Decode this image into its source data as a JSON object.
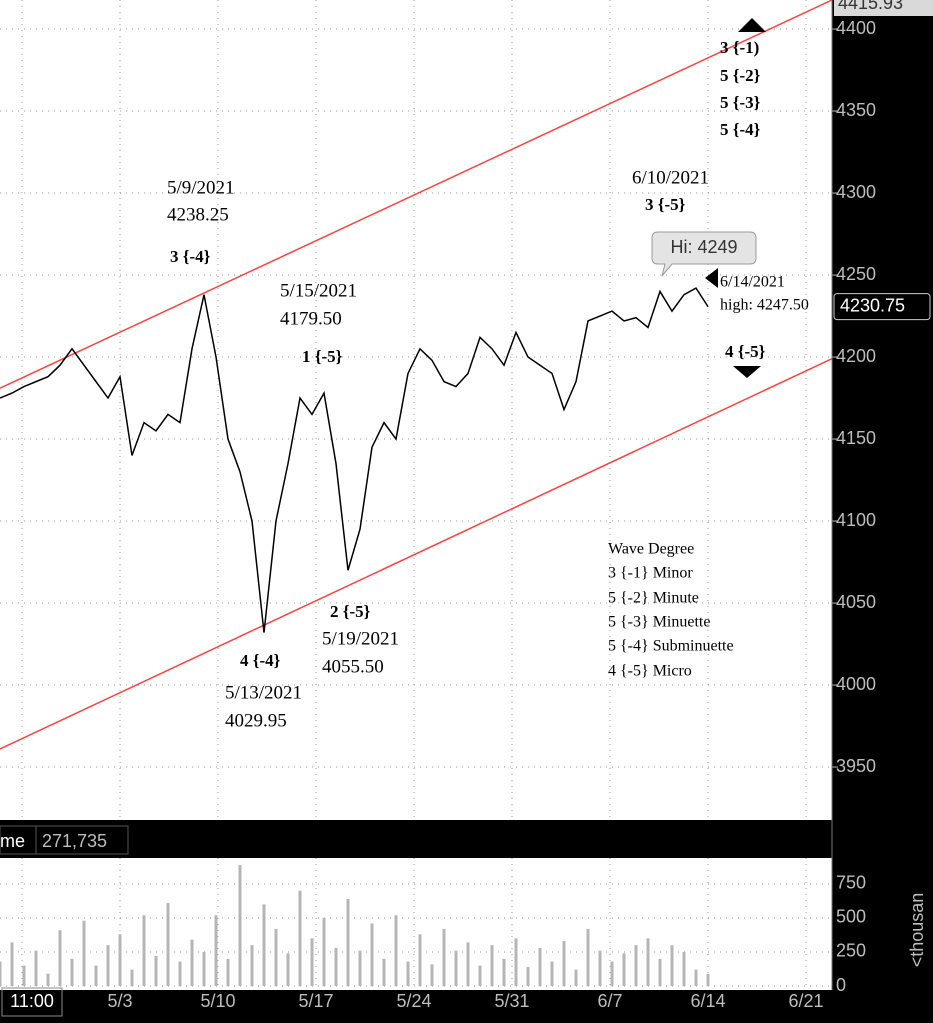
{
  "chart_data": {
    "type": "line",
    "price": {
      "color": "#000000",
      "values": [
        4175,
        4178,
        4182,
        4185,
        4188,
        4195,
        4205,
        4195,
        4185,
        4175,
        4188,
        4140,
        4160,
        4155,
        4165,
        4160,
        4205,
        4238,
        4200,
        4150,
        4130,
        4100,
        4032,
        4100,
        4135,
        4175,
        4165,
        4178,
        4135,
        4070,
        4095,
        4145,
        4160,
        4150,
        4190,
        4205,
        4198,
        4185,
        4182,
        4190,
        4212,
        4205,
        4195,
        4215,
        4200,
        4195,
        4190,
        4168,
        4185,
        4222,
        4225,
        4228,
        4222,
        4224,
        4218,
        4240,
        4228,
        4238,
        4242,
        4230.75
      ],
      "ylim": [
        3917.7,
        4417.7
      ],
      "yticks": [
        3950,
        4000,
        4050,
        4100,
        4150,
        4200,
        4250,
        4300,
        4350,
        4400
      ],
      "last_label": "4230.75",
      "top_label": "4415.93"
    },
    "channel": {
      "color": "#ff4040",
      "upper": [
        4181,
        4417.7
      ],
      "lower": [
        3961,
        4199
      ]
    },
    "volume": {
      "header": "me",
      "header_value": "271,735",
      "color": "#b5b5b5",
      "values": [
        180,
        320,
        150,
        260,
        90,
        410,
        200,
        480,
        150,
        300,
        380,
        120,
        520,
        220,
        610,
        180,
        340,
        250,
        520,
        200,
        890,
        300,
        600,
        420,
        240,
        700,
        350,
        500,
        280,
        640,
        260,
        460,
        200,
        520,
        180,
        380,
        160,
        420,
        260,
        320,
        150,
        300,
        200,
        350,
        140,
        280,
        180,
        330,
        120,
        420,
        260,
        180,
        240,
        300,
        350,
        200,
        300,
        250,
        120,
        90
      ],
      "ylim": [
        0,
        941
      ],
      "yticks": [
        0,
        250,
        500,
        750
      ],
      "unit": "<thousan"
    },
    "categories": [
      "11:00",
      "5/3",
      "5/10",
      "5/17",
      "5/24",
      "5/31",
      "6/7",
      "6/14",
      "6/21"
    ],
    "grid": true,
    "annotations": [
      "5/9/2021",
      "4238.25",
      "3 {-4}",
      "5/15/2021",
      "4179.50",
      "1 {-5}",
      "4 {-4}",
      "5/13/2021",
      "4029.95",
      "2 {-5}",
      "5/19/2021",
      "4055.50",
      "6/10/2021",
      "3 {-5}",
      "Hi: 4249",
      "6/14/2021",
      "high: 4247.50",
      "3 {-1)",
      "5 {-2}",
      "5 {-3}",
      "5 {-4}",
      "4 {-5}"
    ],
    "legend": {
      "title": "Wave Degree",
      "items": [
        "3 {-1} Minor",
        "5 {-2} Minute",
        "5 {-3} Minuette",
        "5 {-4} Subminuette",
        "4 {-5} Micro"
      ]
    }
  }
}
